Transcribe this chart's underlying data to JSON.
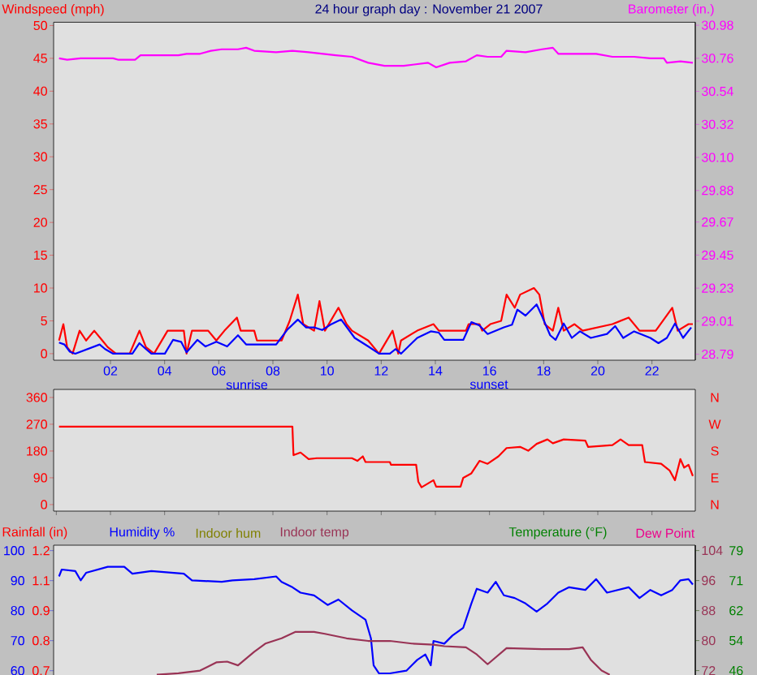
{
  "chart_data": [
    {
      "type": "line",
      "title": "24 hour graph day : November 21 2007",
      "ylabel": "Windspeed (mph)",
      "y2label": "Barometer (in.)",
      "xlim": [
        -0.1,
        23.6
      ],
      "xticks": [
        {
          "value": 2,
          "label": "02"
        },
        {
          "value": 4,
          "label": "04"
        },
        {
          "value": 6,
          "label": "06"
        },
        {
          "value": 8,
          "label": "08"
        },
        {
          "value": 10,
          "label": "10"
        },
        {
          "value": 12,
          "label": "12"
        },
        {
          "value": 14,
          "label": "14"
        },
        {
          "value": 16,
          "label": "16"
        },
        {
          "value": 18,
          "label": "18"
        },
        {
          "value": 20,
          "label": "20"
        },
        {
          "value": 22,
          "label": "22"
        }
      ],
      "ylim": [
        -1,
        50.5
      ],
      "yticks": [
        0,
        5,
        10,
        15,
        20,
        25,
        30,
        35,
        40,
        45,
        50
      ],
      "y2lim": [
        28.75,
        31.0
      ],
      "y2ticks": [
        28.79,
        29.01,
        29.23,
        29.45,
        29.67,
        29.88,
        {
          "value": 30.1,
          "label": "30.10"
        },
        30.32,
        30.54,
        30.76,
        30.98
      ],
      "annotations": [
        "sunrise",
        "sunset"
      ],
      "series": [
        {
          "color": "#ff0000",
          "x": [
            0.1,
            0.26,
            0.4,
            0.6,
            0.86,
            1.1,
            1.4,
            1.7,
            1.9,
            2.2,
            2.71,
            3.07,
            3.31,
            3.61,
            4.11,
            4.71,
            4.81,
            5.01,
            5.61,
            5.91,
            6.21,
            6.67,
            6.81,
            7.31,
            7.41,
            8.32,
            8.62,
            8.92,
            9.12,
            9.52,
            9.72,
            9.92,
            10.42,
            10.72,
            10.92,
            11.52,
            11.92,
            12.42,
            12.63,
            12.73,
            13.33,
            13.93,
            14.13,
            15.13,
            15.23,
            15.63,
            15.73,
            16.03,
            16.43,
            16.63,
            16.93,
            17.13,
            17.64,
            17.84,
            18.04,
            18.34,
            18.54,
            18.74,
            19.14,
            19.44,
            20.54,
            21.14,
            21.54,
            22.14,
            22.75,
            22.95,
            23.35,
            23.51
          ],
          "values": [
            2,
            4.5,
            1,
            0,
            3.5,
            2,
            3.5,
            2,
            1,
            0,
            0,
            3.5,
            1,
            0,
            3.5,
            3.5,
            0,
            3.5,
            3.5,
            2,
            3.5,
            5.5,
            3.5,
            3.5,
            2,
            2,
            5,
            9,
            4.5,
            3.5,
            8,
            3.5,
            7,
            4.5,
            3.5,
            2,
            0,
            3.5,
            0,
            2,
            3.5,
            4.5,
            3.5,
            3.5,
            4.5,
            4.5,
            3.5,
            4.5,
            5,
            9,
            7,
            9,
            10,
            9,
            4.5,
            3.5,
            7,
            3.5,
            4.5,
            3.5,
            4.5,
            5.5,
            3.5,
            3.5,
            7,
            3.5,
            4.5,
            4.5
          ]
        },
        {
          "color": "#0000ff",
          "x": [
            0.1,
            0.3,
            0.5,
            0.7,
            1.6,
            1.8,
            2.1,
            2.81,
            3.07,
            3.31,
            3.51,
            4.01,
            4.31,
            4.61,
            4.81,
            5.21,
            5.51,
            5.91,
            6.31,
            6.71,
            7.01,
            8.12,
            8.52,
            8.92,
            9.22,
            9.52,
            9.82,
            10.12,
            10.52,
            11.02,
            11.52,
            11.92,
            12.32,
            12.53,
            12.73,
            13.33,
            13.83,
            14.13,
            14.33,
            15.03,
            15.33,
            15.63,
            15.93,
            16.53,
            16.83,
            17.03,
            17.33,
            17.74,
            17.94,
            18.24,
            18.44,
            18.74,
            19.04,
            19.34,
            19.74,
            20.34,
            20.64,
            20.94,
            21.34,
            21.94,
            22.24,
            22.55,
            22.85,
            23.15,
            23.45
          ],
          "values": [
            1.7,
            1.4,
            0.3,
            0,
            1.4,
            0.7,
            0,
            0,
            1.6,
            0.7,
            0,
            0,
            2.1,
            1.8,
            0.2,
            2.1,
            1.1,
            1.8,
            1.1,
            2.8,
            1.4,
            1.4,
            3.6,
            5.2,
            4,
            4,
            3.6,
            4.4,
            5.2,
            2.4,
            1.1,
            0,
            0,
            0.7,
            0,
            2.4,
            3.4,
            3.2,
            2.1,
            2.1,
            4.8,
            4.3,
            3,
            4,
            4.4,
            6.7,
            5.8,
            7.5,
            5.7,
            2.8,
            2.1,
            4.6,
            2.4,
            3.4,
            2.4,
            3,
            4.2,
            2.4,
            3.4,
            2.4,
            1.6,
            2.4,
            4.6,
            2.4,
            4
          ]
        },
        {
          "color": "#ff00ff",
          "axis": "y2",
          "x": [
            0.1,
            0.4,
            0.9,
            2.1,
            2.3,
            2.91,
            3.11,
            3.91,
            4.51,
            4.81,
            5.31,
            5.71,
            6.11,
            6.71,
            7.01,
            7.31,
            8.12,
            8.72,
            9.32,
            10.32,
            10.92,
            11.52,
            12.12,
            12.83,
            13.73,
            14.03,
            14.53,
            15.13,
            15.53,
            15.93,
            16.43,
            16.63,
            17.33,
            17.94,
            18.34,
            18.54,
            19.34,
            19.94,
            20.54,
            21.34,
            21.94,
            22.44,
            22.55,
            23.05,
            23.51
          ],
          "values": [
            30.76,
            30.75,
            30.76,
            30.76,
            30.75,
            30.75,
            30.78,
            30.78,
            30.78,
            30.79,
            30.79,
            30.81,
            30.82,
            30.82,
            30.83,
            30.81,
            30.8,
            30.81,
            30.8,
            30.78,
            30.77,
            30.73,
            30.71,
            30.71,
            30.73,
            30.7,
            30.73,
            30.74,
            30.78,
            30.77,
            30.77,
            30.81,
            30.8,
            30.82,
            30.83,
            30.79,
            30.79,
            30.79,
            30.77,
            30.77,
            30.76,
            30.76,
            30.73,
            30.74,
            30.73
          ]
        }
      ]
    },
    {
      "type": "line",
      "xlim": [
        -0.1,
        23.6
      ],
      "tick_labels": "y",
      "ylim": [
        -22,
        387
      ],
      "yticks": [
        0,
        90,
        180,
        270,
        360
      ],
      "annotations": [
        "N",
        "W",
        "S",
        "E",
        "N"
      ],
      "series": [
        {
          "color": "#ff0000",
          "x": [
            0.1,
            8.72,
            8.76,
            9.02,
            9.32,
            9.62,
            10.92,
            11.12,
            11.32,
            11.42,
            12.32,
            12.36,
            13.29,
            13.37,
            13.49,
            13.73,
            13.93,
            14.03,
            14.93,
            15.03,
            15.33,
            15.63,
            15.93,
            16.33,
            16.63,
            17.13,
            17.43,
            17.74,
            18.14,
            18.34,
            18.74,
            19.54,
            19.64,
            20.54,
            20.84,
            21.14,
            21.64,
            21.74,
            22.34,
            22.65,
            22.85,
            23.05,
            23.19,
            23.35,
            23.51
          ],
          "values": [
            262,
            262,
            166,
            175,
            153,
            156,
            156,
            147,
            162,
            143,
            143,
            134,
            134,
            77,
            58,
            71,
            82,
            60,
            60,
            90,
            105,
            147,
            137,
            162,
            190,
            194,
            181,
            204,
            219,
            206,
            219,
            215,
            194,
            200,
            219,
            200,
            200,
            143,
            137,
            115,
            82,
            153,
            124,
            134,
            96
          ]
        }
      ]
    },
    {
      "type": "line",
      "xlim": [
        -0.1,
        23.6
      ],
      "tick_labels": "y",
      "y3label": "Temperature (°F)",
      "annotations": [
        "Rainfall (in)",
        "1.2",
        "1.1",
        "0.9",
        "0.8",
        "0.7",
        "Indoor hum",
        "Dew Point"
      ],
      "ylim": [
        56.4,
        101.8
      ],
      "yticks": [
        60,
        70,
        80,
        90,
        100
      ],
      "y2lim": [
        69.1,
        105.4
      ],
      "y2ticks": [
        72,
        80,
        88,
        96,
        104
      ],
      "y3lim": [
        43.0,
        80.49
      ],
      "y3ticks": [
        46,
        {
          "value": 54.25,
          "label": "54"
        },
        {
          "value": 62.5,
          "label": "62"
        },
        {
          "value": 70.75,
          "label": "71"
        },
        79
      ],
      "series": [
        {
          "name": "Humidity %",
          "color": "#0000ff",
          "x": [
            0.1,
            0.2,
            0.7,
            0.9,
            1.1,
            1.9,
            2.51,
            2.81,
            3.51,
            4.71,
            5.01,
            6.11,
            6.51,
            7.31,
            8.12,
            8.32,
            8.72,
            9.02,
            9.52,
            10.02,
            10.42,
            10.92,
            11.42,
            11.62,
            11.72,
            11.92,
            12.32,
            12.93,
            13.33,
            13.63,
            13.83,
            13.93,
            14.33,
            14.63,
            15.03,
            15.33,
            15.53,
            15.93,
            16.23,
            16.53,
            16.93,
            17.33,
            17.74,
            18.14,
            18.54,
            18.94,
            19.54,
            19.94,
            20.34,
            21.14,
            21.54,
            21.94,
            22.34,
            22.75,
            23.05,
            23.35,
            23.51
          ],
          "values": [
            91.4,
            93.7,
            93.2,
            90.1,
            92.6,
            94.6,
            94.6,
            92.3,
            93.2,
            92.3,
            90.1,
            89.6,
            90.1,
            90.5,
            91.4,
            89.6,
            87.8,
            86.0,
            85.1,
            81.9,
            83.7,
            80.1,
            77.0,
            70.8,
            61.8,
            59.1,
            59.1,
            60.0,
            63.6,
            65.4,
            61.8,
            69.9,
            69.0,
            71.7,
            74.3,
            82.4,
            87.3,
            86.0,
            89.6,
            85.1,
            84.2,
            82.4,
            79.7,
            82.4,
            86.0,
            87.8,
            86.9,
            90.5,
            86.0,
            87.8,
            84.2,
            86.9,
            85.1,
            86.9,
            90.1,
            90.5,
            88.7
          ]
        },
        {
          "name": "Indoor temp",
          "color": "#993355",
          "axis": "y2",
          "x": [
            3.71,
            4.51,
            5.31,
            5.91,
            6.31,
            6.71,
            7.31,
            7.72,
            8.32,
            8.82,
            9.52,
            9.92,
            10.72,
            11.52,
            12.32,
            13.13,
            13.93,
            14.33,
            15.13,
            15.53,
            15.93,
            16.63,
            17.94,
            18.94,
            19.44,
            19.74,
            20.14,
            20.44
          ],
          "values": [
            70.9,
            71.3,
            72.0,
            74.2,
            74.4,
            73.4,
            77.0,
            79.2,
            80.6,
            82.3,
            82.3,
            81.8,
            80.6,
            79.9,
            79.9,
            79.2,
            78.9,
            78.5,
            78.2,
            76.3,
            73.7,
            78.0,
            77.7,
            77.7,
            78.2,
            74.9,
            72.0,
            70.9
          ]
        }
      ]
    }
  ]
}
